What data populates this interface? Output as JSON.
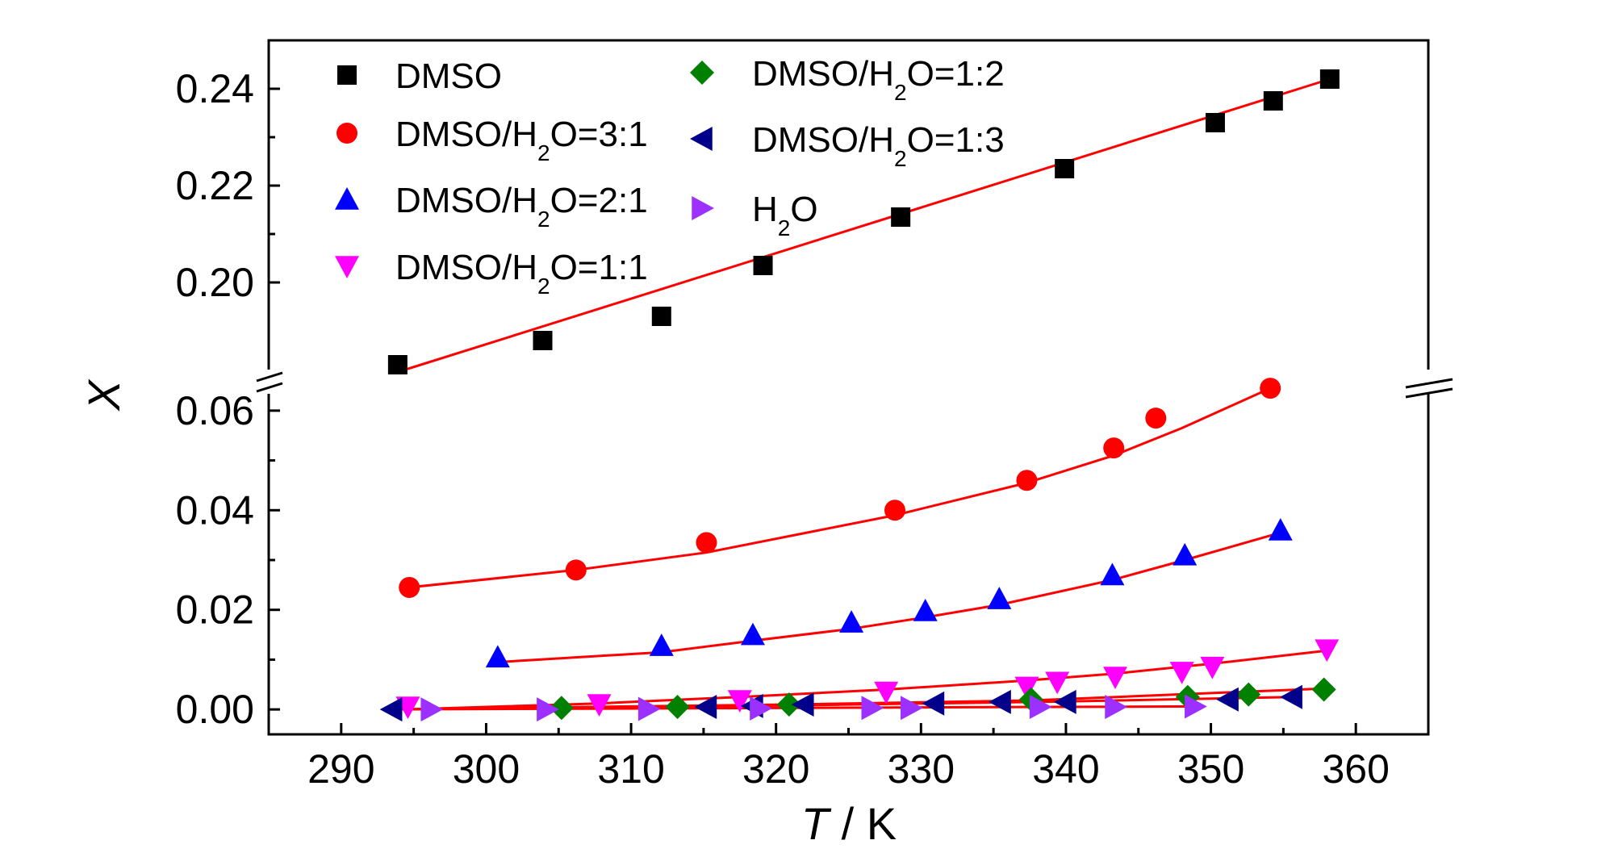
{
  "chart_data": {
    "type": "scatter",
    "xlabel": {
      "italic": "T",
      "rest": " / K"
    },
    "ylabel": "X",
    "xlim": [
      285,
      365
    ],
    "x_ticks": [
      "290",
      "300",
      "310",
      "320",
      "330",
      "340",
      "350",
      "360"
    ],
    "y_axis_break": {
      "lower_range": [
        -0.005,
        0.065
      ],
      "upper_range": [
        0.18,
        0.25
      ]
    },
    "y_ticks_lower": [
      "0.00",
      "0.02",
      "0.04",
      "0.06"
    ],
    "y_ticks_upper": [
      "0.20",
      "0.22",
      "0.24"
    ],
    "legend_position": "top-left, two columns",
    "series": [
      {
        "name": "DMSO",
        "legend": {
          "pre": "DMSO",
          "sub": "",
          "post": ""
        },
        "marker": "square",
        "color": "#000000",
        "x": [
          293.9,
          303.9,
          312.1,
          319.1,
          328.6,
          339.9,
          350.3,
          354.3,
          358.2
        ],
        "y": [
          0.183,
          0.188,
          0.193,
          0.2035,
          0.2135,
          0.2235,
          0.233,
          0.2375,
          0.242
        ],
        "fit": [
          [
            293.9,
            0.1815
          ],
          [
            358.2,
            0.242
          ]
        ]
      },
      {
        "name": "DMSO/H2O=3:1",
        "legend": {
          "pre": "DMSO/H",
          "sub": "2",
          "post": "O=3:1"
        },
        "marker": "circle",
        "color": "#ff0000",
        "x": [
          294.7,
          306.2,
          315.2,
          328.2,
          337.3,
          343.3,
          346.2,
          354.1
        ],
        "y": [
          0.0245,
          0.028,
          0.0335,
          0.04,
          0.046,
          0.0525,
          0.0585,
          0.0645
        ],
        "fit": [
          [
            294.7,
            0.0245
          ],
          [
            306.2,
            0.028
          ],
          [
            315.2,
            0.0315
          ],
          [
            328.2,
            0.039
          ],
          [
            337.3,
            0.0455
          ],
          [
            343.3,
            0.051
          ],
          [
            348.0,
            0.0565
          ],
          [
            354.1,
            0.0645
          ]
        ]
      },
      {
        "name": "DMSO/H2O=2:1",
        "legend": {
          "pre": "DMSO/H",
          "sub": "2",
          "post": "O=2:1"
        },
        "marker": "triangle-up",
        "color": "#0000ff",
        "x": [
          300.8,
          312.1,
          318.4,
          325.2,
          330.3,
          335.4,
          343.2,
          348.2,
          354.8
        ],
        "y": [
          0.0105,
          0.0128,
          0.015,
          0.0175,
          0.0198,
          0.0222,
          0.027,
          0.031,
          0.036
        ],
        "fit": [
          [
            300.8,
            0.0095
          ],
          [
            312.1,
            0.0115
          ],
          [
            318.4,
            0.0138
          ],
          [
            325.2,
            0.0162
          ],
          [
            330.3,
            0.0185
          ],
          [
            335.4,
            0.021
          ],
          [
            343.2,
            0.026
          ],
          [
            348.2,
            0.03
          ],
          [
            354.8,
            0.0355
          ]
        ]
      },
      {
        "name": "DMSO/H2O=1:1",
        "legend": {
          "pre": "DMSO/H",
          "sub": "2",
          "post": "O=1:1"
        },
        "marker": "triangle-down",
        "color": "#ff00ff",
        "x": [
          294.6,
          307.8,
          317.5,
          327.6,
          337.3,
          339.4,
          343.4,
          348.0,
          350.1,
          358.0
        ],
        "y": [
          0.0005,
          0.001,
          0.0018,
          0.0035,
          0.0045,
          0.0055,
          0.0065,
          0.0075,
          0.0085,
          0.012
        ],
        "fit": [
          [
            294.6,
            0.0
          ],
          [
            307.8,
            0.0012
          ],
          [
            317.5,
            0.0025
          ],
          [
            327.6,
            0.004
          ],
          [
            337.3,
            0.0058
          ],
          [
            343.4,
            0.0072
          ],
          [
            350.1,
            0.0092
          ],
          [
            358.0,
            0.0118
          ]
        ]
      },
      {
        "name": "DMSO/H2O=1:2",
        "legend": {
          "pre": "DMSO/H",
          "sub": "2",
          "post": "O=1:2"
        },
        "marker": "diamond",
        "color": "#008000",
        "x": [
          305.2,
          313.2,
          320.9,
          337.6,
          348.4,
          352.6,
          357.8
        ],
        "y": [
          0.0003,
          0.0005,
          0.001,
          0.002,
          0.0025,
          0.003,
          0.004
        ],
        "fit": [
          [
            293.5,
            0.0
          ],
          [
            320.9,
            0.001
          ],
          [
            337.6,
            0.0018
          ],
          [
            357.8,
            0.0042
          ]
        ]
      },
      {
        "name": "DMSO/H2O=1:3",
        "legend": {
          "pre": "DMSO/H",
          "sub": "2",
          "post": "O=1:3"
        },
        "marker": "triangle-left",
        "color": "#00008b",
        "x": [
          293.5,
          315.2,
          318.4,
          321.9,
          330.9,
          335.5,
          340.0,
          351.2,
          355.6
        ],
        "y": [
          0.0,
          0.0005,
          0.0007,
          0.001,
          0.0012,
          0.0015,
          0.0015,
          0.002,
          0.0025
        ],
        "fit": [
          [
            293.5,
            0.0
          ],
          [
            318.4,
            0.0007
          ],
          [
            340.0,
            0.0016
          ],
          [
            355.6,
            0.0025
          ]
        ]
      },
      {
        "name": "H2O",
        "legend": {
          "pre": "H",
          "sub": "2",
          "post": "O"
        },
        "marker": "triangle-right",
        "color": "#9b30ff",
        "x": [
          296.2,
          304.2,
          311.2,
          318.9,
          326.6,
          329.3,
          338.2,
          343.4,
          348.9
        ],
        "y": [
          0.0,
          0.0,
          0.0001,
          0.0002,
          0.0003,
          0.0003,
          0.0005,
          0.0005,
          0.0006
        ],
        "fit": [
          [
            293.5,
            0.0
          ],
          [
            348.9,
            0.0006
          ]
        ]
      }
    ]
  }
}
